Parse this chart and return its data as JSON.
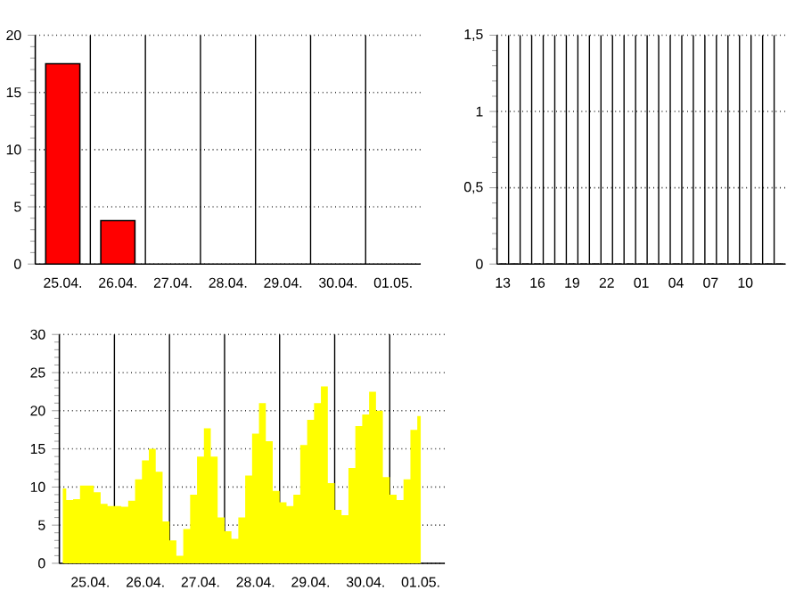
{
  "chart_data": [
    {
      "type": "bar",
      "categories": [
        "25.04.",
        "26.04.",
        "27.04.",
        "28.04.",
        "29.04.",
        "30.04.",
        "01.05."
      ],
      "values": [
        17.5,
        3.8,
        null,
        null,
        null,
        null,
        null
      ],
      "color": "#ff0000",
      "ylim": [
        0,
        20
      ],
      "yticks": [
        0,
        5,
        10,
        15,
        20
      ],
      "grid": true
    },
    {
      "type": "bar",
      "categories": [
        "13",
        null,
        null,
        "16",
        null,
        null,
        "19",
        null,
        null,
        "22",
        null,
        null,
        "01",
        null,
        null,
        "04",
        null,
        null,
        "07",
        null,
        null,
        "10",
        null,
        null,
        null
      ],
      "values": [
        0,
        0,
        0,
        0,
        0,
        0,
        0,
        0,
        0,
        0,
        0,
        0,
        0,
        0,
        0,
        0,
        0,
        0,
        0,
        0,
        0,
        0,
        0,
        0,
        0
      ],
      "color": "#ff0000",
      "ylim": [
        0,
        1.5
      ],
      "yticks": [
        0,
        {
          "value": 0.5,
          "label": "0,5"
        },
        1,
        {
          "value": 1.5,
          "label": "1,5"
        }
      ],
      "grid": true
    },
    {
      "type": "area",
      "categories": [
        null,
        null,
        null,
        null,
        "25.04.",
        null,
        null,
        null,
        null,
        null,
        null,
        null,
        "26.04.",
        null,
        null,
        null,
        null,
        null,
        null,
        null,
        "27.04.",
        null,
        null,
        null,
        null,
        null,
        null,
        null,
        "28.04.",
        null,
        null,
        null,
        null,
        null,
        null,
        null,
        "29.04.",
        null,
        null,
        null,
        null,
        null,
        null,
        null,
        "30.04.",
        null,
        null,
        null,
        null,
        null,
        null,
        null,
        "01.05.",
        null,
        null,
        null
      ],
      "values": [
        9.8,
        8.3,
        8.4,
        10.2,
        10.2,
        9.3,
        7.8,
        7.5,
        7.5,
        7.4,
        8.2,
        11,
        13.5,
        15,
        12,
        5.5,
        3,
        1,
        4.5,
        9,
        14,
        17.7,
        14,
        6,
        4.2,
        3.2,
        6,
        11.5,
        17,
        21,
        16,
        9.5,
        8,
        7.5,
        9,
        15.5,
        18.8,
        21,
        23.2,
        10.5,
        7,
        6.3,
        12.5,
        18,
        19.5,
        22.5,
        20,
        11.3,
        9,
        8.3,
        11,
        17.5,
        19.3,
        null,
        null,
        null
      ],
      "color": "#ffff00",
      "ylim": [
        0,
        30
      ],
      "yticks": [
        0,
        5,
        10,
        15,
        20,
        25,
        30
      ],
      "grid": true
    }
  ]
}
